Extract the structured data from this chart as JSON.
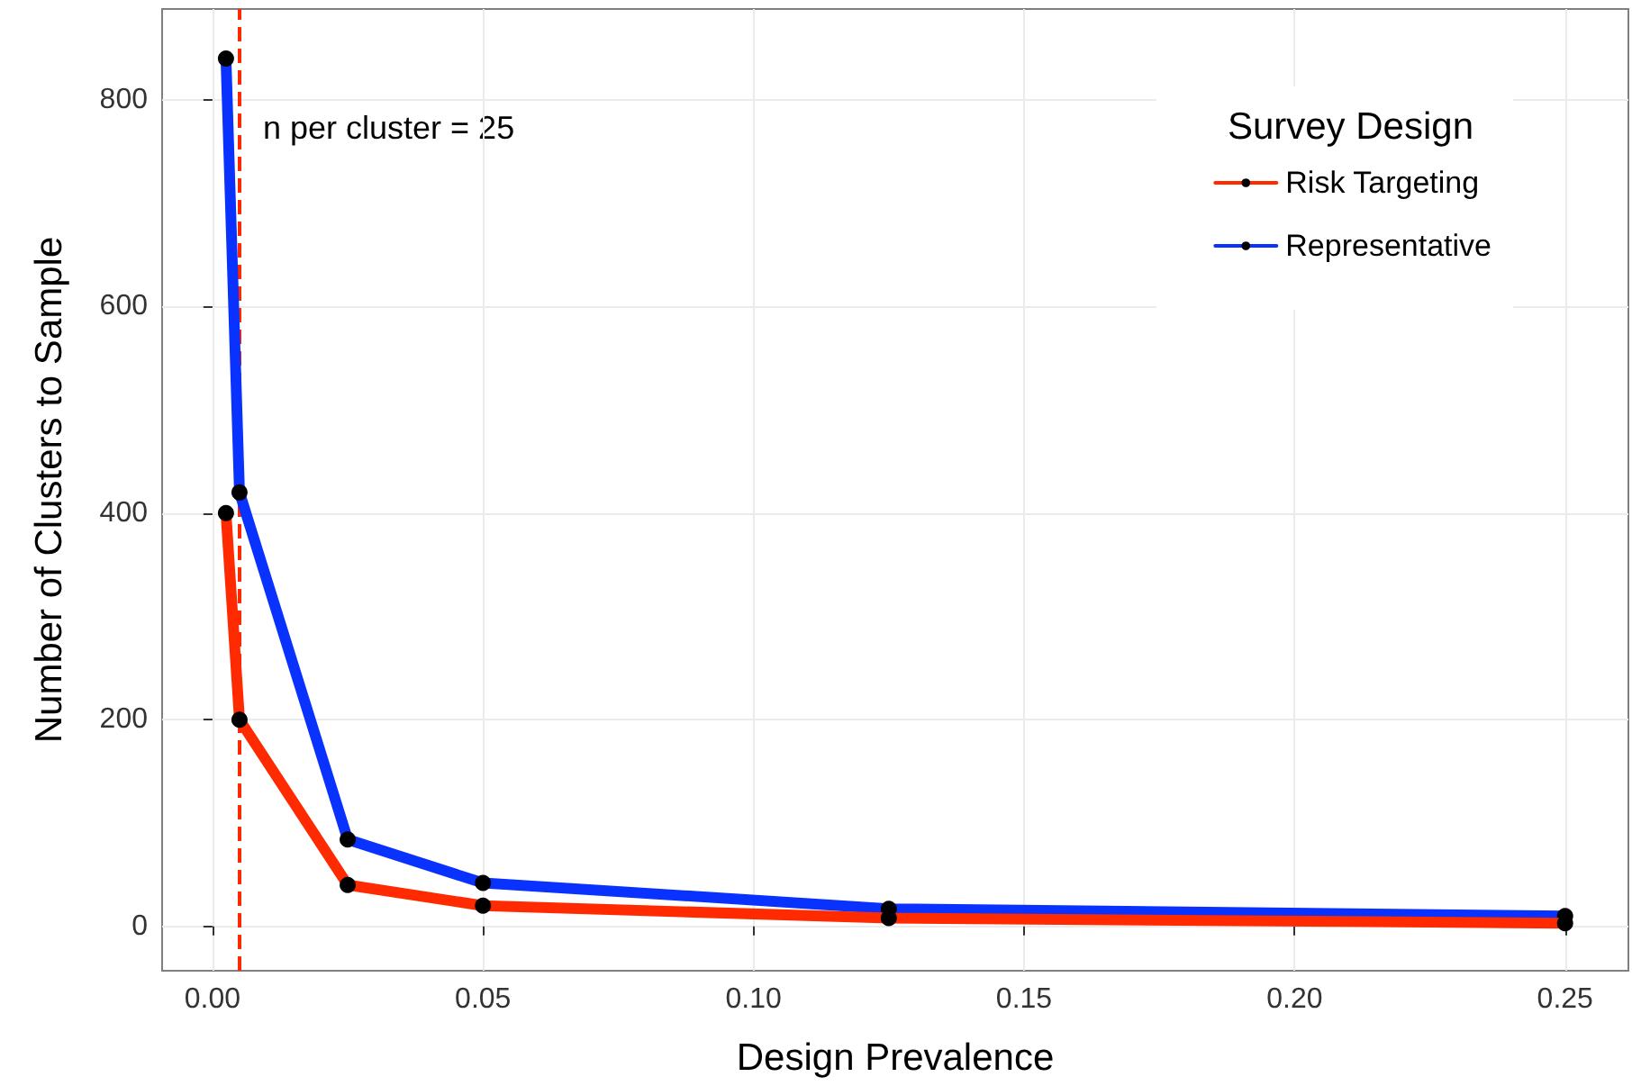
{
  "chart_data": {
    "type": "line",
    "xlabel": "Design Prevalence",
    "ylabel": "Number of Clusters to Sample",
    "legend_title": "Survey Design",
    "x": [
      0.0025,
      0.005,
      0.025,
      0.05,
      0.125,
      0.25
    ],
    "series": [
      {
        "name": "Risk Targeting",
        "color": "#ff2a00",
        "values": [
          400,
          200,
          40,
          20,
          8,
          3
        ]
      },
      {
        "name": "Representative",
        "color": "#0a32ff",
        "values": [
          840,
          420,
          84,
          42,
          17,
          10
        ]
      }
    ],
    "xlim": [
      -0.0093,
      0.2617
    ],
    "xticks": [
      {
        "value": 0,
        "label": "0.00"
      },
      {
        "value": 0.05,
        "label": "0.05"
      },
      {
        "value": 0.1,
        "label": "0.10"
      },
      {
        "value": 0.15,
        "label": "0.15"
      },
      {
        "value": 0.2,
        "label": "0.20"
      },
      {
        "value": 0.25,
        "label": "0.25"
      }
    ],
    "ylim": [
      -43,
      888
    ],
    "yticks": [
      0,
      200,
      400,
      600,
      800
    ],
    "ref_lines": [
      {
        "axis": "x",
        "value": 0.005,
        "color": "#ff2a00",
        "line_style": "dashed"
      }
    ],
    "annotations": [
      "n per cluster = 25"
    ],
    "grid": true,
    "legend": "top right",
    "marker": "circle",
    "line_style": "solid"
  }
}
